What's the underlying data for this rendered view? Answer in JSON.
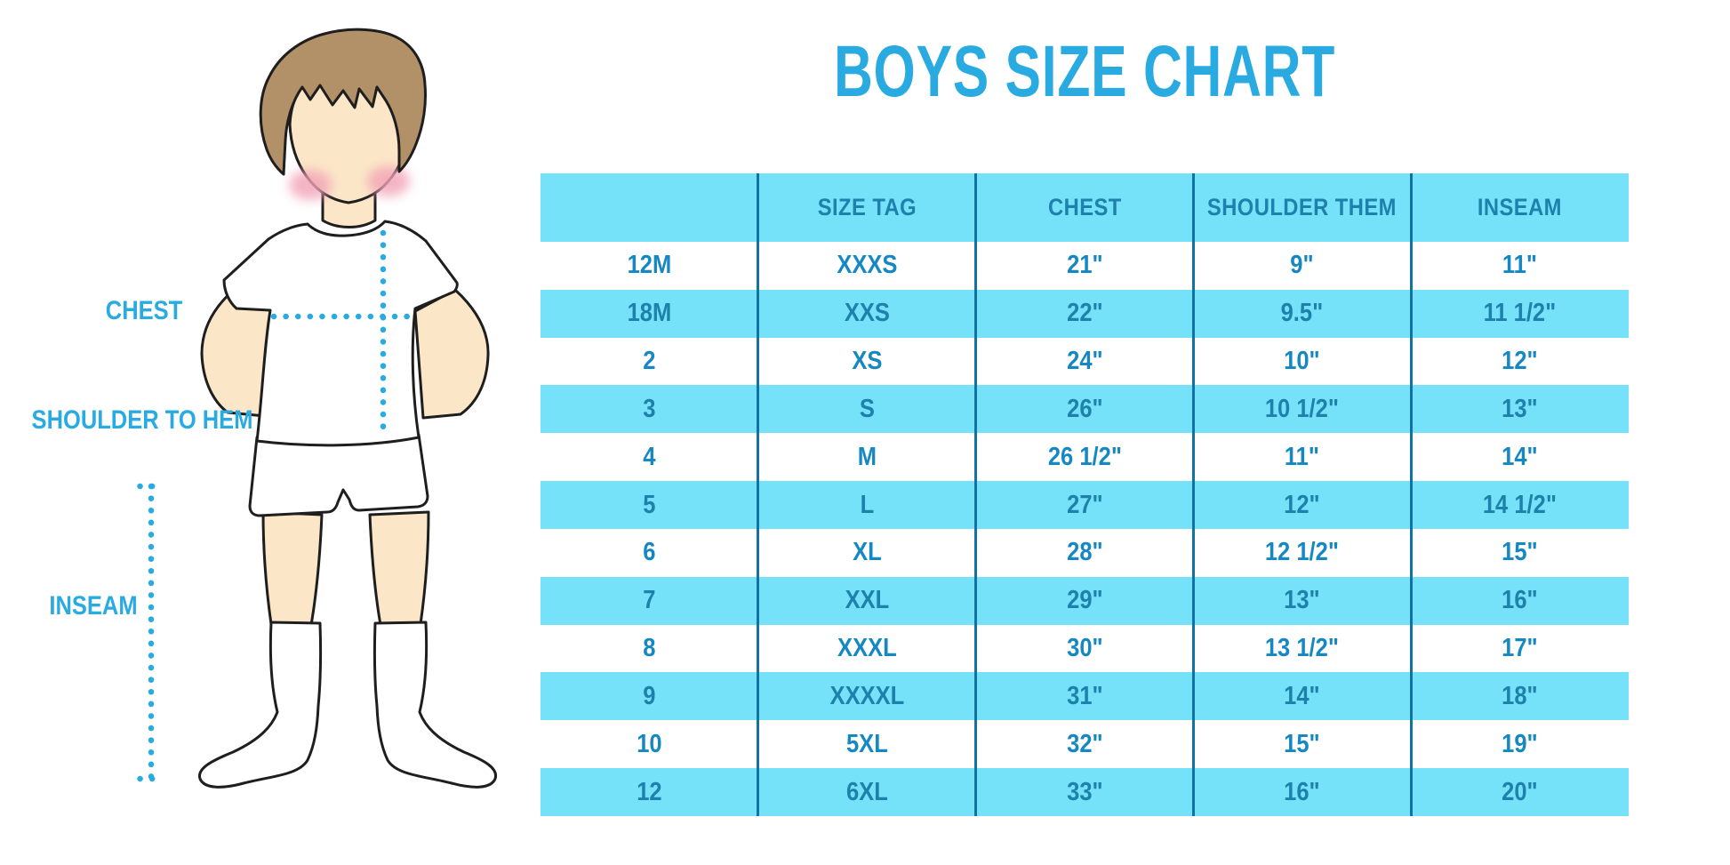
{
  "title": "BOYS SIZE CHART",
  "figure": {
    "description": "Outline illustration of a boy with brown hair wearing a white t-shirt, white shorts and white knee socks, hands behind his back, with dotted measurement guide lines",
    "labels": {
      "chest": "CHEST",
      "shoulder_to_hem": "SHOULDER TO HEM",
      "inseam": "INSEAM"
    }
  },
  "table": {
    "columns": [
      "",
      "SIZE TAG",
      "CHEST",
      "SHOULDER THEM",
      "INSEAM"
    ],
    "rows": [
      [
        "12M",
        "XXXS",
        "21\"",
        "9\"",
        "11\""
      ],
      [
        "18M",
        "XXS",
        "22\"",
        "9.5\"",
        "11 1/2\""
      ],
      [
        "2",
        "XS",
        "24\"",
        "10\"",
        "12\""
      ],
      [
        "3",
        "S",
        "26\"",
        "10 1/2\"",
        "13\""
      ],
      [
        "4",
        "M",
        "26 1/2\"",
        "11\"",
        "14\""
      ],
      [
        "5",
        "L",
        "27\"",
        "12\"",
        "14 1/2\""
      ],
      [
        "6",
        "XL",
        "28\"",
        "12 1/2\"",
        "15\""
      ],
      [
        "7",
        "XXL",
        "29\"",
        "13\"",
        "16\""
      ],
      [
        "8",
        "XXXL",
        "30\"",
        "13 1/2\"",
        "17\""
      ],
      [
        "9",
        "XXXXL",
        "31\"",
        "14\"",
        "18\""
      ],
      [
        "10",
        "5XL",
        "32\"",
        "15\"",
        "19\""
      ],
      [
        "12",
        "6XL",
        "33\"",
        "16\"",
        "20\""
      ]
    ]
  },
  "colors": {
    "accent": "#29ABE2",
    "row_highlight": "#76E2FA",
    "column_divider": "#1173A3",
    "header_text": "#1E81AC",
    "cell_text_on_white": "#1588C4",
    "cell_text_on_cyan": "#1E81AC",
    "skin": "#FBE7C8",
    "hair": "#B29068",
    "cheek": "#F2A2B6"
  }
}
